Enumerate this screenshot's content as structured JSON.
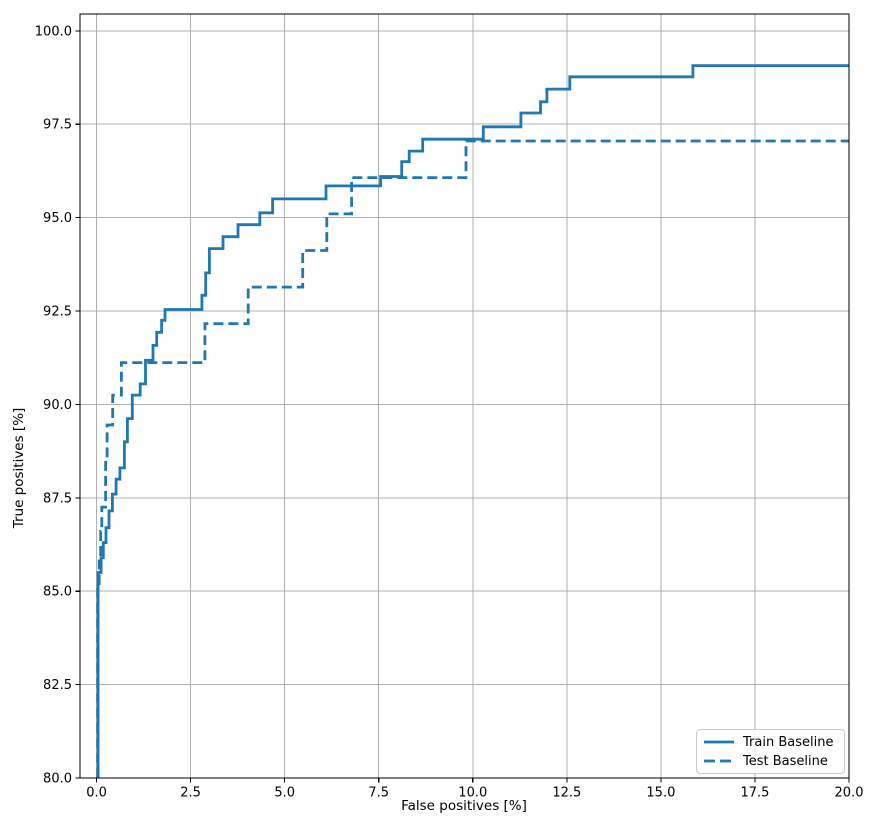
{
  "figure": {
    "background": "#ffffff"
  },
  "chart_data": {
    "type": "line",
    "subtype": "step-curve-roc",
    "title": "",
    "xlabel": "False positives [%]",
    "ylabel": "True positives [%]",
    "xlim": [
      -0.44,
      20.0
    ],
    "ylim": [
      80.0,
      100.45
    ],
    "xticks": [
      0.0,
      2.5,
      5.0,
      7.5,
      10.0,
      12.5,
      15.0,
      17.5,
      20.0
    ],
    "xtick_labels": [
      "0.0",
      "2.5",
      "5.0",
      "7.5",
      "10.0",
      "12.5",
      "15.0",
      "17.5",
      "20.0"
    ],
    "yticks": [
      80.0,
      82.5,
      85.0,
      87.5,
      90.0,
      92.5,
      95.0,
      97.5,
      100.0
    ],
    "ytick_labels": [
      "80.0",
      "82.5",
      "85.0",
      "87.5",
      "90.0",
      "92.5",
      "95.0",
      "97.5",
      "100.0"
    ],
    "grid": true,
    "grid_color": "#b0b0b0",
    "axis_color": "#000000",
    "line_color": "#1f77b4",
    "legend_position": "lower right",
    "legend_entries": [
      "Train Baseline",
      "Test Baseline"
    ],
    "x_end": 20.0,
    "series": [
      {
        "name": "Train Baseline",
        "style": "solid",
        "start_y": 80.0,
        "steps": [
          [
            0.04,
            85.5
          ],
          [
            0.12,
            85.9
          ],
          [
            0.18,
            86.3
          ],
          [
            0.25,
            86.7
          ],
          [
            0.33,
            87.15
          ],
          [
            0.42,
            87.6
          ],
          [
            0.52,
            88.0
          ],
          [
            0.62,
            88.3
          ],
          [
            0.74,
            89.0
          ],
          [
            0.82,
            89.62
          ],
          [
            0.95,
            90.25
          ],
          [
            1.16,
            90.55
          ],
          [
            1.3,
            91.18
          ],
          [
            1.5,
            91.58
          ],
          [
            1.6,
            91.93
          ],
          [
            1.73,
            92.25
          ],
          [
            1.82,
            92.54
          ],
          [
            2.8,
            92.92
          ],
          [
            2.9,
            93.52
          ],
          [
            3.0,
            94.17
          ],
          [
            3.36,
            94.49
          ],
          [
            3.76,
            94.81
          ],
          [
            4.34,
            95.13
          ],
          [
            4.68,
            95.5
          ],
          [
            6.1,
            95.85
          ],
          [
            7.55,
            96.1
          ],
          [
            8.11,
            96.5
          ],
          [
            8.31,
            96.78
          ],
          [
            8.67,
            97.1
          ],
          [
            10.28,
            97.43
          ],
          [
            11.28,
            97.8
          ],
          [
            11.8,
            98.1
          ],
          [
            11.97,
            98.44
          ],
          [
            12.58,
            98.77
          ],
          [
            15.85,
            99.07
          ]
        ]
      },
      {
        "name": "Test Baseline",
        "style": "dashed",
        "start_y": 80.0,
        "steps": [
          [
            0.03,
            85.2
          ],
          [
            0.07,
            85.9
          ],
          [
            0.11,
            86.6
          ],
          [
            0.14,
            87.25
          ],
          [
            0.24,
            88.5
          ],
          [
            0.28,
            89.45
          ],
          [
            0.43,
            90.25
          ],
          [
            0.66,
            91.12
          ],
          [
            2.88,
            92.16
          ],
          [
            4.03,
            93.14
          ],
          [
            5.48,
            94.12
          ],
          [
            6.12,
            95.1
          ],
          [
            6.78,
            96.07
          ],
          [
            9.82,
            97.05
          ]
        ]
      }
    ]
  }
}
